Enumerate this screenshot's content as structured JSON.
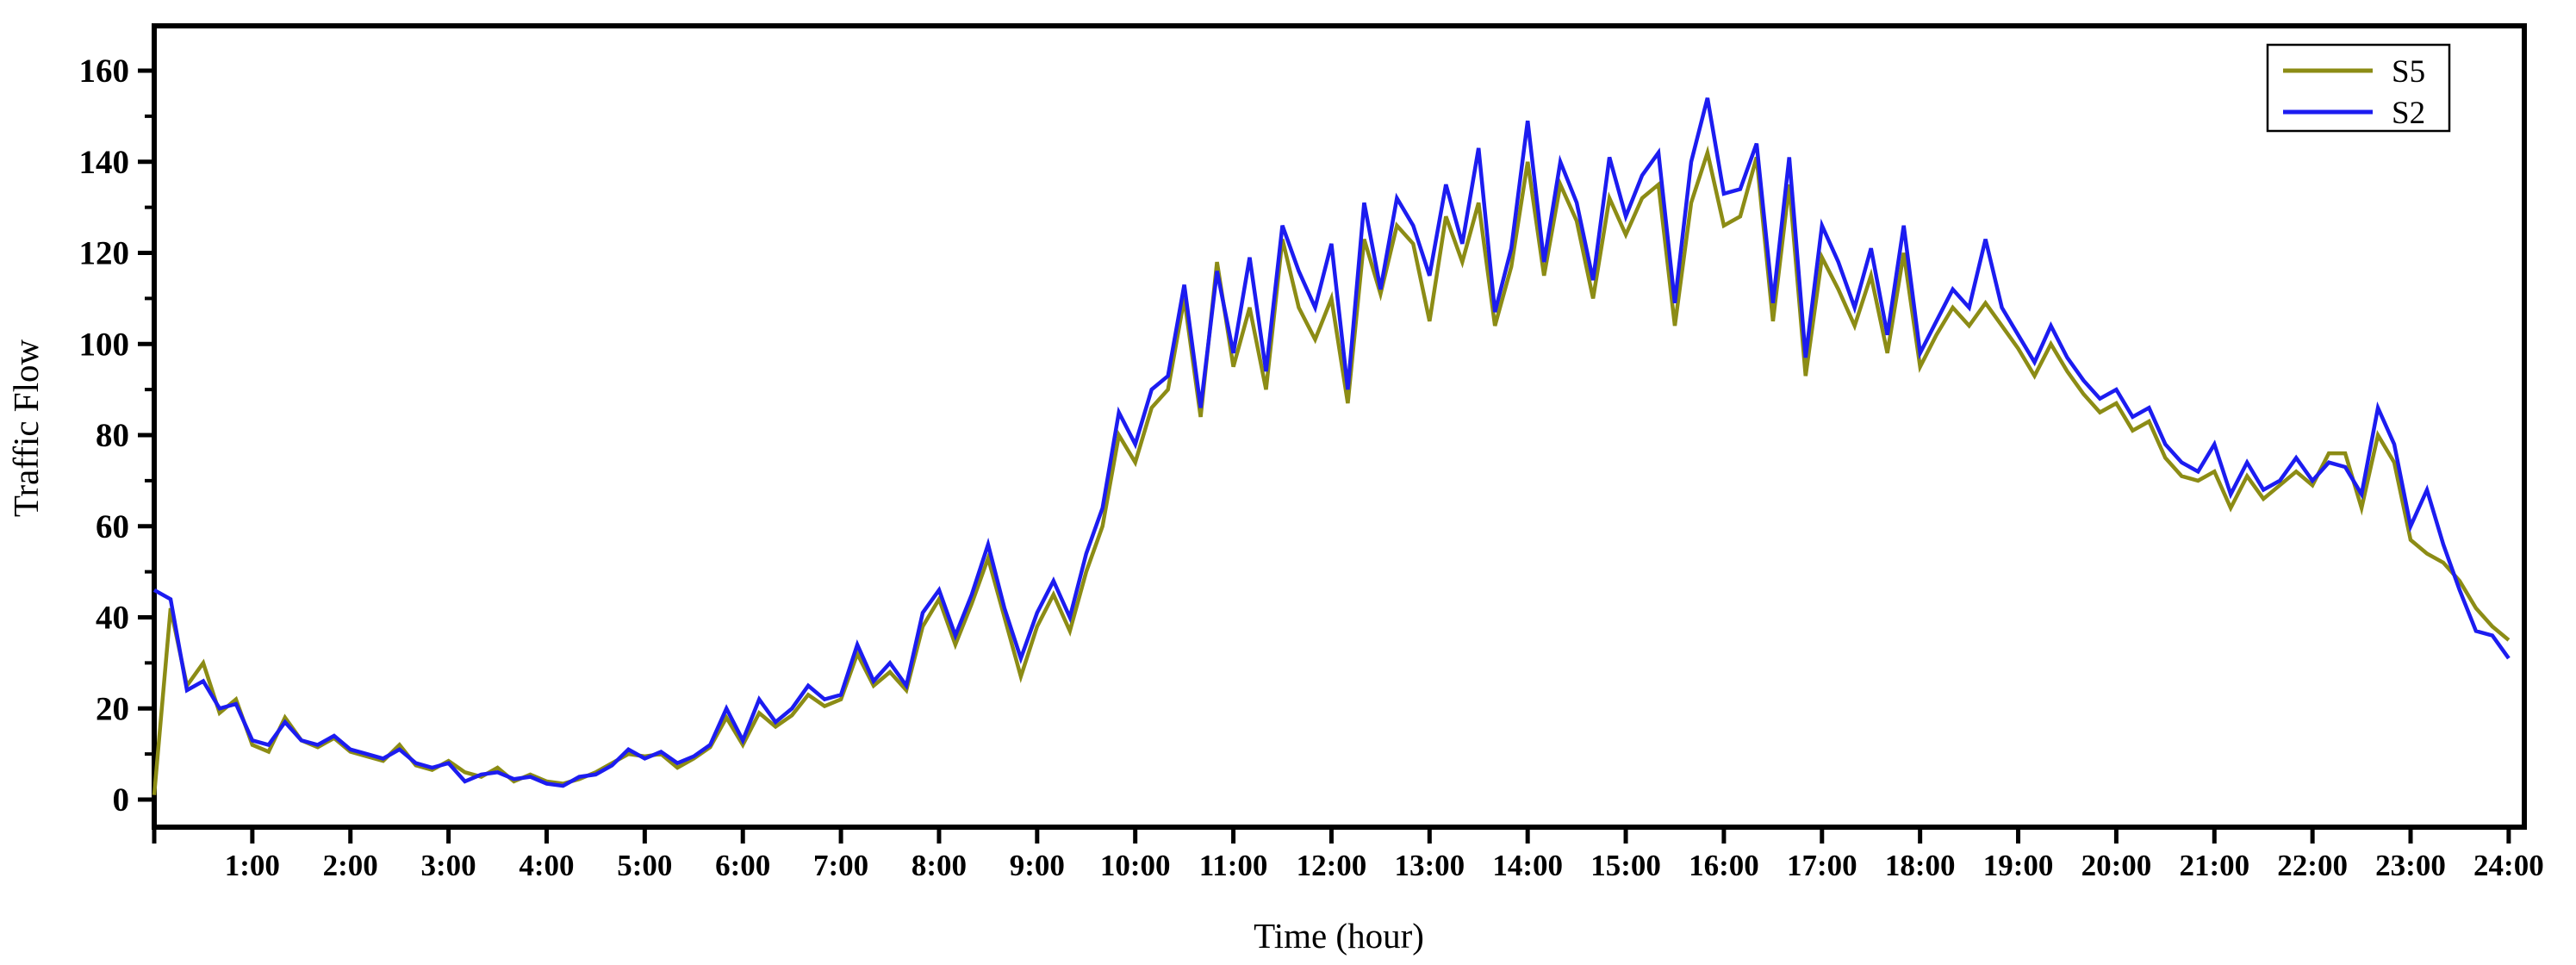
{
  "chart_data": {
    "type": "line",
    "title": "",
    "xlabel": "Time (hour)",
    "ylabel": "Traffic Flow",
    "x_start_hour": 0,
    "x_end_hour": 24,
    "x_interval_minutes": 10,
    "x_tick_labels": [
      "1:00",
      "2:00",
      "3:00",
      "4:00",
      "5:00",
      "6:00",
      "7:00",
      "8:00",
      "9:00",
      "10:00",
      "11:00",
      "12:00",
      "13:00",
      "14:00",
      "15:00",
      "16:00",
      "17:00",
      "18:00",
      "19:00",
      "20:00",
      "21:00",
      "22:00",
      "23:00",
      "24:00"
    ],
    "y_major_ticks": [
      0,
      20,
      40,
      60,
      80,
      100,
      120,
      140,
      160
    ],
    "y_minor_tick_step": 10,
    "ylim": [
      -6,
      170
    ],
    "grid": false,
    "axis_color": "#000000",
    "legend": {
      "position": "top-right",
      "entries": [
        {
          "label": "S5",
          "color": "#8C8C15"
        },
        {
          "label": "S2",
          "color": "#1C1CF0"
        }
      ]
    },
    "series": [
      {
        "name": "S5",
        "color": "#8C8C15",
        "values": [
          1,
          42,
          25,
          30,
          19,
          22,
          12,
          10.5,
          18,
          13,
          11.5,
          13.5,
          10.5,
          9.5,
          8.5,
          12,
          7.5,
          6.5,
          8.5,
          6,
          5,
          7,
          4,
          5.5,
          4,
          3.5,
          4.5,
          6,
          8,
          10,
          9.5,
          10,
          7,
          9,
          11.5,
          18,
          12,
          19,
          16,
          18.5,
          23,
          20.5,
          22,
          32,
          25,
          28,
          24,
          38,
          44,
          34,
          43,
          53,
          40,
          27,
          38,
          45,
          37,
          50,
          60,
          80,
          74,
          86,
          90,
          110,
          84,
          118,
          95,
          108,
          90,
          123,
          108,
          101,
          110,
          87,
          123,
          111,
          126,
          122,
          105,
          128,
          118,
          131,
          104,
          117,
          140,
          115,
          135,
          127,
          110,
          132,
          124,
          132,
          135,
          104,
          131,
          142,
          126,
          128,
          141,
          105,
          135,
          93,
          119,
          112,
          104,
          115,
          98,
          120,
          95,
          102,
          108,
          104,
          109,
          104,
          99,
          93,
          100,
          94,
          89,
          85,
          87,
          81,
          83,
          75,
          71,
          70,
          72,
          64,
          71,
          66,
          69,
          72,
          69,
          76,
          76,
          64,
          80,
          74,
          57,
          54,
          52,
          48,
          42,
          38,
          35
        ]
      },
      {
        "name": "S2",
        "color": "#1C1CF0",
        "values": [
          46,
          44,
          24,
          26,
          20,
          21,
          13,
          12,
          17,
          13,
          12,
          14,
          11,
          10,
          9,
          11,
          8,
          7,
          8,
          4,
          5.5,
          6,
          4.5,
          5,
          3.5,
          3,
          5,
          5.5,
          7.5,
          11,
          9,
          10.5,
          8,
          9.5,
          12,
          20,
          13,
          22,
          17,
          20,
          25,
          22,
          23,
          34,
          26,
          30,
          25,
          41,
          46,
          36,
          45,
          56,
          42,
          31,
          41,
          48,
          40,
          54,
          64,
          85,
          78,
          90,
          93,
          113,
          86,
          116,
          98,
          119,
          94,
          126,
          116,
          108,
          122,
          90,
          131,
          112,
          132,
          126,
          115,
          135,
          122,
          143,
          107,
          121,
          149,
          118,
          140,
          131,
          114,
          141,
          128,
          137,
          142,
          109,
          140,
          154,
          133,
          134,
          144,
          109,
          141,
          97,
          126,
          118,
          108,
          121,
          102,
          126,
          98,
          105,
          112,
          108,
          123,
          108,
          102,
          96,
          104,
          97,
          92,
          88,
          90,
          84,
          86,
          78,
          74,
          72,
          78,
          67,
          74,
          68,
          70,
          75,
          70,
          74,
          73,
          67,
          86,
          78,
          60,
          68,
          56,
          46,
          37,
          36,
          31
        ]
      }
    ]
  }
}
